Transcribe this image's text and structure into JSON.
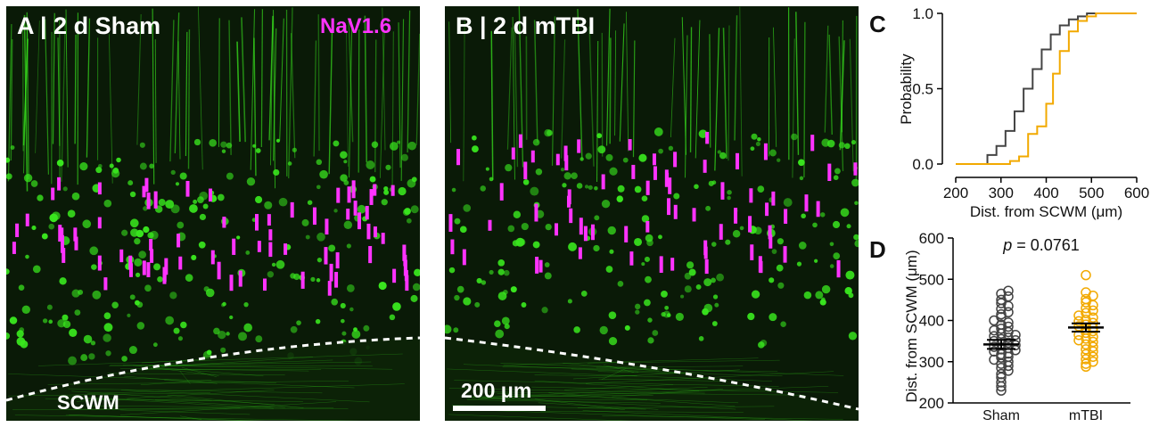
{
  "panels": {
    "a": {
      "title": "A |  2 d Sham",
      "marker": "NaV1.6",
      "region_label": "SCWM"
    },
    "b": {
      "title": "B |  2 d mTBI",
      "scale_bar_label": "200 μm"
    }
  },
  "colors": {
    "sham": "#444444",
    "mtbi": "#f2a900",
    "marker": "#ff33ff",
    "neuron": "#39e61e",
    "tissue": "#0a1a07"
  },
  "chart_data": [
    {
      "panel": "C",
      "type": "line",
      "xlabel": "Dist. from SCWM (μm)",
      "ylabel": "Probability",
      "xlim": [
        200,
        600
      ],
      "ylim": [
        0,
        1
      ],
      "xticks": [
        "200",
        "300",
        "400",
        "500",
        "600"
      ],
      "yticks": [
        "0.0",
        "0.5",
        "1.0"
      ],
      "step": true,
      "series": [
        {
          "group": "sham",
          "x": [
            200,
            255,
            270,
            290,
            310,
            330,
            350,
            370,
            390,
            410,
            430,
            450,
            470,
            490,
            600
          ],
          "y": [
            0.0,
            0.0,
            0.06,
            0.12,
            0.22,
            0.35,
            0.5,
            0.63,
            0.76,
            0.86,
            0.92,
            0.96,
            0.98,
            1.0,
            1.0
          ]
        },
        {
          "group": "mtbi",
          "x": [
            200,
            300,
            320,
            340,
            360,
            380,
            400,
            415,
            430,
            450,
            470,
            490,
            510,
            600
          ],
          "y": [
            0.0,
            0.0,
            0.02,
            0.05,
            0.2,
            0.25,
            0.4,
            0.6,
            0.75,
            0.88,
            0.95,
            0.98,
            1.0,
            1.0
          ]
        }
      ]
    },
    {
      "panel": "D",
      "type": "scatter",
      "ylabel": "Dist. from SCWM (μm)",
      "ylim": [
        200,
        600
      ],
      "yticks": [
        "200",
        "300",
        "400",
        "500",
        "600"
      ],
      "categories": [
        "Sham",
        "mTBI"
      ],
      "annotation_p": "p",
      "annotation_value": "= 0.0761",
      "series": [
        {
          "group": "sham",
          "mean": 342,
          "sem": 11,
          "values": [
            230,
            240,
            250,
            262,
            270,
            278,
            285,
            290,
            295,
            300,
            305,
            310,
            312,
            318,
            320,
            325,
            328,
            330,
            333,
            336,
            340,
            343,
            346,
            350,
            352,
            355,
            358,
            362,
            365,
            368,
            372,
            376,
            380,
            385,
            390,
            395,
            400,
            408,
            415,
            420,
            428,
            435,
            442,
            450,
            458,
            465,
            472
          ]
        },
        {
          "group": "mtbi",
          "mean": 383,
          "sem": 10,
          "values": [
            288,
            295,
            300,
            306,
            312,
            318,
            325,
            330,
            336,
            342,
            348,
            352,
            356,
            360,
            365,
            370,
            374,
            378,
            382,
            386,
            390,
            394,
            398,
            402,
            407,
            412,
            418,
            424,
            430,
            437,
            444,
            452,
            460,
            468,
            510
          ]
        }
      ]
    }
  ]
}
